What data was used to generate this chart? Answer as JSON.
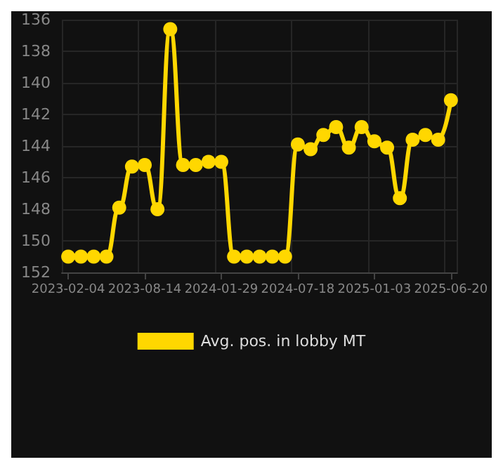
{
  "chart_data": {
    "type": "line",
    "categories": [
      "2023-02-04",
      null,
      null,
      null,
      null,
      null,
      "2023-08-14",
      null,
      null,
      null,
      null,
      null,
      "2024-01-29",
      null,
      null,
      null,
      null,
      null,
      "2024-07-18",
      null,
      null,
      null,
      null,
      null,
      "2025-01-03",
      null,
      null,
      null,
      null,
      null,
      "2025-06-20"
    ],
    "series": [
      {
        "name": "Avg. pos. in lobby MT",
        "color": "#ffd700",
        "values": [
          151,
          151,
          151,
          151,
          147.9,
          145.3,
          145.2,
          148,
          136.6,
          145.2,
          145.2,
          145,
          145,
          151,
          151,
          151,
          151,
          151,
          143.9,
          144.2,
          143.3,
          142.8,
          144.1,
          142.8,
          143.7,
          144.1,
          147.3,
          143.6,
          143.3,
          143.6,
          141.1
        ]
      }
    ],
    "ylim": [
      152,
      136
    ],
    "yticks": [
      136,
      138,
      140,
      142,
      144,
      146,
      148,
      150,
      152
    ],
    "grid": true,
    "legend": "bottom",
    "marker": "circle",
    "line_style": "solid"
  }
}
